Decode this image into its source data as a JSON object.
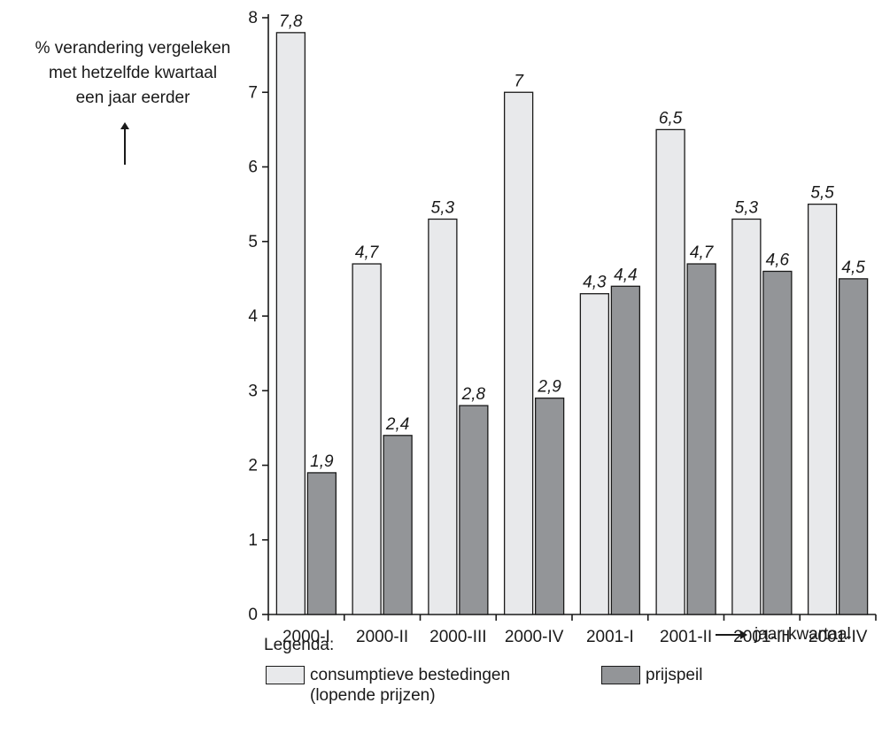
{
  "chart_data": {
    "type": "bar",
    "ylabel": [
      "% verandering vergeleken",
      "met hetzelfde kwartaal",
      "een jaar eerder"
    ],
    "xlabel": "jaar-kwartaal",
    "categories": [
      "2000-I",
      "2000-II",
      "2000-III",
      "2000-IV",
      "2001-I",
      "2001-II",
      "2001-III",
      "2001-IV"
    ],
    "ylim": [
      0,
      8
    ],
    "yticks": [
      "0",
      "1",
      "2",
      "3",
      "4",
      "5",
      "6",
      "7",
      "8"
    ],
    "grid": false,
    "legend_placement": "bottom",
    "series": [
      {
        "name": "consumptieve bestedingen (lopende prijzen)",
        "values": [
          7.8,
          4.7,
          5.3,
          7,
          4.3,
          6.5,
          5.3,
          5.5
        ],
        "labels": [
          "7,8",
          "4,7",
          "5,3",
          "7",
          "4,3",
          "6,5",
          "5,3",
          "5,5"
        ],
        "color": "#e8e9eb"
      },
      {
        "name": "prijspeil",
        "values": [
          1.9,
          2.4,
          2.8,
          2.9,
          4.4,
          4.7,
          4.6,
          4.5
        ],
        "labels": [
          "1,9",
          "2,4",
          "2,8",
          "2,9",
          "4,4",
          "4,7",
          "4,6",
          "4,5"
        ],
        "color": "#939598"
      }
    ]
  },
  "legend": {
    "title": "Legenda:",
    "items": [
      {
        "line1": "consumptieve bestedingen",
        "line2": "(lopende prijzen)"
      },
      {
        "line1": "prijspeil",
        "line2": ""
      }
    ]
  }
}
